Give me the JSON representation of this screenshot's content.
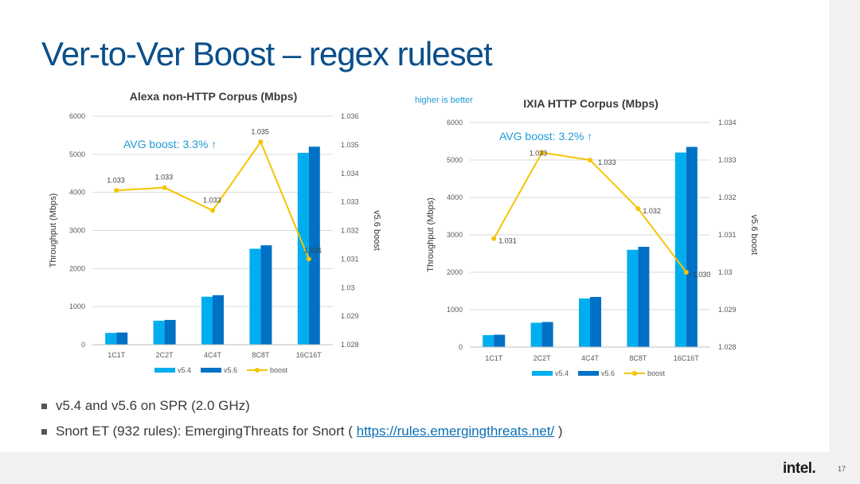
{
  "slide": {
    "title": "Ver-to-Ver Boost – regex ruleset",
    "note": "higher is better",
    "page_number": "17",
    "logo": "intel.",
    "bullets": [
      "v5.4 and v5.6 on SPR (2.0 GHz)",
      "Snort ET (932 rules): EmergingThreats for Snort ("
    ],
    "bullet2_link": "https://rules.emergingthreats.net/",
    "bullet2_end": ")"
  },
  "colors": {
    "v54": "#00aeef",
    "v56": "#0071c5",
    "boost": "#f5c400",
    "title": "#0b4f8a",
    "avg": "#1f9ad6"
  },
  "chart_data": [
    {
      "type": "bar",
      "title": "Alexa non-HTTP Corpus (Mbps)",
      "ylabel": "Throughput (Mbps)",
      "y2label": "v5.6 boost",
      "categories": [
        "1C1T",
        "2C2T",
        "4C4T",
        "8C8T",
        "16C16T"
      ],
      "ylim": [
        0,
        6000
      ],
      "yticks": [
        "0",
        "1000",
        "2000",
        "3000",
        "4000",
        "5000",
        "6000"
      ],
      "y2lim": [
        1.028,
        1.036
      ],
      "y2ticks": [
        "1.028",
        "1.029",
        "1.03",
        "1.031",
        "1.032",
        "1.033",
        "1.034",
        "1.035",
        "1.036"
      ],
      "series": [
        {
          "name": "v5.4",
          "values": [
            310,
            630,
            1260,
            2520,
            5040
          ]
        },
        {
          "name": "v5.6",
          "values": [
            320,
            650,
            1300,
            2610,
            5200
          ]
        }
      ],
      "line": {
        "name": "boost",
        "values": [
          1.0334,
          1.0335,
          1.0327,
          1.0351,
          1.031
        ],
        "labels": [
          "1.033",
          "1.033",
          "1.033",
          "1.035",
          "1.031"
        ]
      },
      "annotation": "AVG boost: 3.3% ↑",
      "legend": [
        "v5.4",
        "v5.6",
        "boost"
      ]
    },
    {
      "type": "bar",
      "title": "IXIA HTTP Corpus (Mbps)",
      "ylabel": "Throughput (Mbps)",
      "y2label": "v5.6 boost",
      "categories": [
        "1C1T",
        "2C2T",
        "4C4T",
        "8C8T",
        "16C16T"
      ],
      "ylim": [
        0,
        6000
      ],
      "yticks": [
        "0",
        "1000",
        "2000",
        "3000",
        "4000",
        "5000",
        "6000"
      ],
      "y2lim": [
        1.028,
        1.034
      ],
      "y2ticks": [
        "1.028",
        "1.029",
        "1.03",
        "1.031",
        "1.032",
        "1.033",
        "1.034"
      ],
      "series": [
        {
          "name": "v5.4",
          "values": [
            320,
            650,
            1300,
            2600,
            5200
          ]
        },
        {
          "name": "v5.6",
          "values": [
            330,
            670,
            1340,
            2680,
            5350
          ]
        }
      ],
      "line": {
        "name": "boost",
        "values": [
          1.0309,
          1.0332,
          1.033,
          1.0317,
          1.03
        ],
        "labels": [
          "1.031",
          "1.033",
          "1.033",
          "1.032",
          "1.030"
        ]
      },
      "annotation": "AVG boost: 3.2% ↑",
      "legend": [
        "v5.4",
        "v5.6",
        "boost"
      ]
    }
  ]
}
